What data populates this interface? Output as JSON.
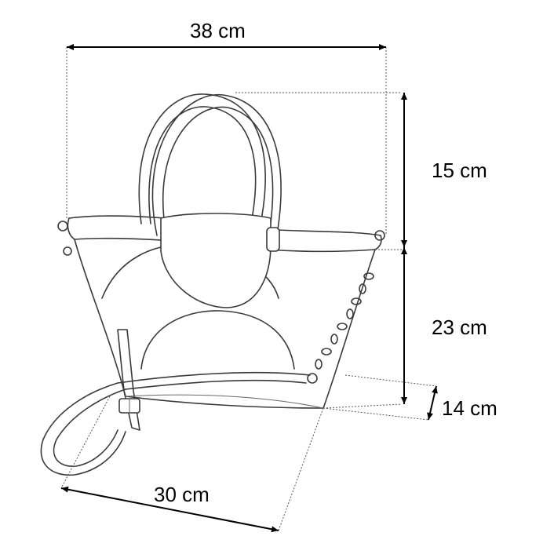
{
  "dimensions": {
    "width_top": "38 cm",
    "handle_height": "15 cm",
    "body_height": "23 cm",
    "depth": "14 cm",
    "width_bottom": "30 cm"
  },
  "colors": {
    "line": "#000000",
    "sketch": "#3a3a3a",
    "background": "#ffffff"
  }
}
